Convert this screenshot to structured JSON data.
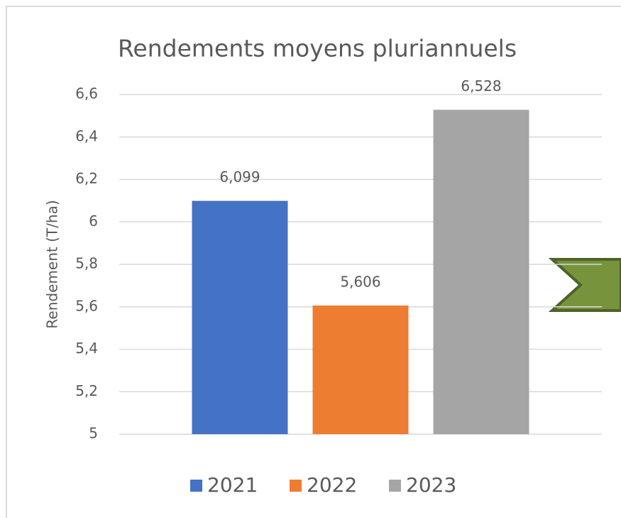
{
  "chart_data": {
    "type": "bar",
    "title": "Rendements moyens pluriannuels",
    "y_label": "Rendement (T/ha)",
    "categories": [
      null
    ],
    "series": [
      {
        "name": "2021",
        "color": "#4472c4",
        "values": [
          6.099
        ],
        "value_labels": [
          "6,099"
        ]
      },
      {
        "name": "2022",
        "color": "#ed7d31",
        "values": [
          5.606
        ],
        "value_labels": [
          "5,606"
        ]
      },
      {
        "name": "2023",
        "color": "#a5a5a5",
        "values": [
          6.528
        ],
        "value_labels": [
          "6,528"
        ]
      }
    ],
    "ylim": [
      5,
      6.6
    ],
    "yticks": [
      5,
      {
        "value": 5.2,
        "label": "5,2"
      },
      {
        "value": 5.4,
        "label": "5,4"
      },
      {
        "value": 5.6,
        "label": "5,6"
      },
      {
        "value": 5.8,
        "label": "5,8"
      },
      6,
      {
        "value": 6.2,
        "label": "6,2"
      },
      {
        "value": 6.4,
        "label": "6,4"
      },
      {
        "value": 6.6,
        "label": "6,6"
      }
    ],
    "grid": true,
    "legend": "bottom"
  }
}
